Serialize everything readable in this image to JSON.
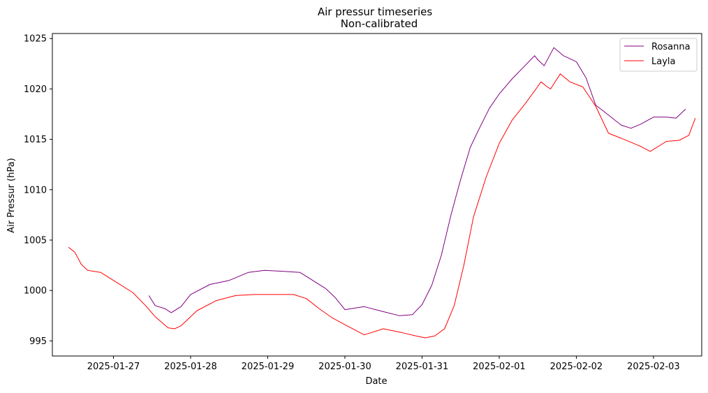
{
  "chart_data": {
    "type": "line",
    "title": "Air pressur timeseries",
    "subtitle": "Non-calibrated",
    "xlabel": "Date",
    "ylabel": "Air Pressur (hPa)",
    "xlim": [
      "2025-01-26 05:00",
      "2025-02-03 15:00"
    ],
    "ylim": [
      993.5,
      1025.5
    ],
    "x_ticks": [
      "2025-01-27",
      "2025-01-28",
      "2025-01-29",
      "2025-01-30",
      "2025-01-31",
      "2025-02-01",
      "2025-02-02",
      "2025-02-03"
    ],
    "y_ticks": [
      995,
      1000,
      1005,
      1010,
      1015,
      1020,
      1025
    ],
    "grid": false,
    "legend": "top-right",
    "series": [
      {
        "name": "Rosanna",
        "color": "#800080",
        "x": [
          "2025-01-27 11:00",
          "2025-01-27 13:00",
          "2025-01-27 16:00",
          "2025-01-27 18:00",
          "2025-01-27 21:00",
          "2025-01-28 00:00",
          "2025-01-28 06:00",
          "2025-01-28 12:00",
          "2025-01-28 18:00",
          "2025-01-28 23:00",
          "2025-01-29 05:00",
          "2025-01-29 10:00",
          "2025-01-29 14:00",
          "2025-01-29 18:00",
          "2025-01-29 21:00",
          "2025-01-30 00:00",
          "2025-01-30 06:00",
          "2025-01-30 12:00",
          "2025-01-30 17:00",
          "2025-01-30 21:00",
          "2025-01-31 00:00",
          "2025-01-31 03:00",
          "2025-01-31 06:00",
          "2025-01-31 09:00",
          "2025-01-31 12:00",
          "2025-01-31 15:00",
          "2025-01-31 18:00",
          "2025-01-31 21:00",
          "2025-02-01 00:00",
          "2025-02-01 04:00",
          "2025-02-01 08:00",
          "2025-02-01 11:00",
          "2025-02-01 12:00",
          "2025-02-01 14:00",
          "2025-02-01 17:00",
          "2025-02-01 20:00",
          "2025-02-02 00:00",
          "2025-02-02 03:00",
          "2025-02-02 06:00",
          "2025-02-02 10:00",
          "2025-02-02 14:00",
          "2025-02-02 17:00",
          "2025-02-02 20:00",
          "2025-02-03 00:00",
          "2025-02-03 04:00",
          "2025-02-03 07:00",
          "2025-02-03 10:00"
        ],
        "y": [
          999.5,
          998.5,
          998.2,
          997.8,
          998.4,
          999.6,
          1000.6,
          1001.0,
          1001.8,
          1002.0,
          1001.9,
          1001.8,
          1001.0,
          1000.2,
          999.3,
          998.1,
          998.4,
          997.9,
          997.5,
          997.6,
          998.6,
          1000.5,
          1003.5,
          1007.5,
          1011.0,
          1014.2,
          1016.2,
          1018.1,
          1019.5,
          1021.0,
          1022.3,
          1023.3,
          1022.9,
          1022.3,
          1024.1,
          1023.3,
          1022.7,
          1021.1,
          1018.4,
          1017.4,
          1016.4,
          1016.1,
          1016.5,
          1017.2,
          1017.2,
          1017.1,
          1018.0
        ]
      },
      {
        "name": "Layla",
        "color": "#ff0000",
        "x": [
          "2025-01-26 10:00",
          "2025-01-26 12:00",
          "2025-01-26 14:00",
          "2025-01-26 16:00",
          "2025-01-26 20:00",
          "2025-01-27 00:00",
          "2025-01-27 06:00",
          "2025-01-27 10:00",
          "2025-01-27 13:00",
          "2025-01-27 17:00",
          "2025-01-27 19:00",
          "2025-01-27 21:00",
          "2025-01-28 02:00",
          "2025-01-28 08:00",
          "2025-01-28 14:00",
          "2025-01-28 20:00",
          "2025-01-29 02:00",
          "2025-01-29 08:00",
          "2025-01-29 12:00",
          "2025-01-29 16:00",
          "2025-01-29 20:00",
          "2025-01-30 00:00",
          "2025-01-30 06:00",
          "2025-01-30 12:00",
          "2025-01-30 18:00",
          "2025-01-30 22:00",
          "2025-01-31 01:00",
          "2025-01-31 04:00",
          "2025-01-31 07:00",
          "2025-01-31 10:00",
          "2025-01-31 13:00",
          "2025-01-31 16:00",
          "2025-01-31 20:00",
          "2025-02-01 00:00",
          "2025-02-01 04:00",
          "2025-02-01 08:00",
          "2025-02-01 11:00",
          "2025-02-01 13:00",
          "2025-02-01 15:00",
          "2025-02-01 16:00",
          "2025-02-01 19:00",
          "2025-02-01 22:00",
          "2025-02-02 02:00",
          "2025-02-02 06:00",
          "2025-02-02 10:00",
          "2025-02-02 14:00",
          "2025-02-02 20:00",
          "2025-02-02 23:00",
          "2025-02-03 04:00",
          "2025-02-03 08:00",
          "2025-02-03 11:00",
          "2025-02-03 13:00"
        ],
        "y": [
          1004.3,
          1003.8,
          1002.6,
          1002.0,
          1001.8,
          1001.0,
          999.8,
          998.5,
          997.4,
          996.3,
          996.2,
          996.5,
          998.0,
          999.0,
          999.5,
          999.6,
          999.6,
          999.6,
          999.2,
          998.2,
          997.3,
          996.6,
          995.6,
          996.2,
          995.8,
          995.5,
          995.3,
          995.5,
          996.2,
          998.5,
          1002.5,
          1007.3,
          1011.3,
          1014.6,
          1016.9,
          1018.5,
          1019.8,
          1020.7,
          1020.2,
          1020.0,
          1021.5,
          1020.7,
          1020.2,
          1018.3,
          1015.6,
          1015.1,
          1014.3,
          1013.8,
          1014.8,
          1014.9,
          1015.4,
          1017.1
        ]
      }
    ]
  }
}
